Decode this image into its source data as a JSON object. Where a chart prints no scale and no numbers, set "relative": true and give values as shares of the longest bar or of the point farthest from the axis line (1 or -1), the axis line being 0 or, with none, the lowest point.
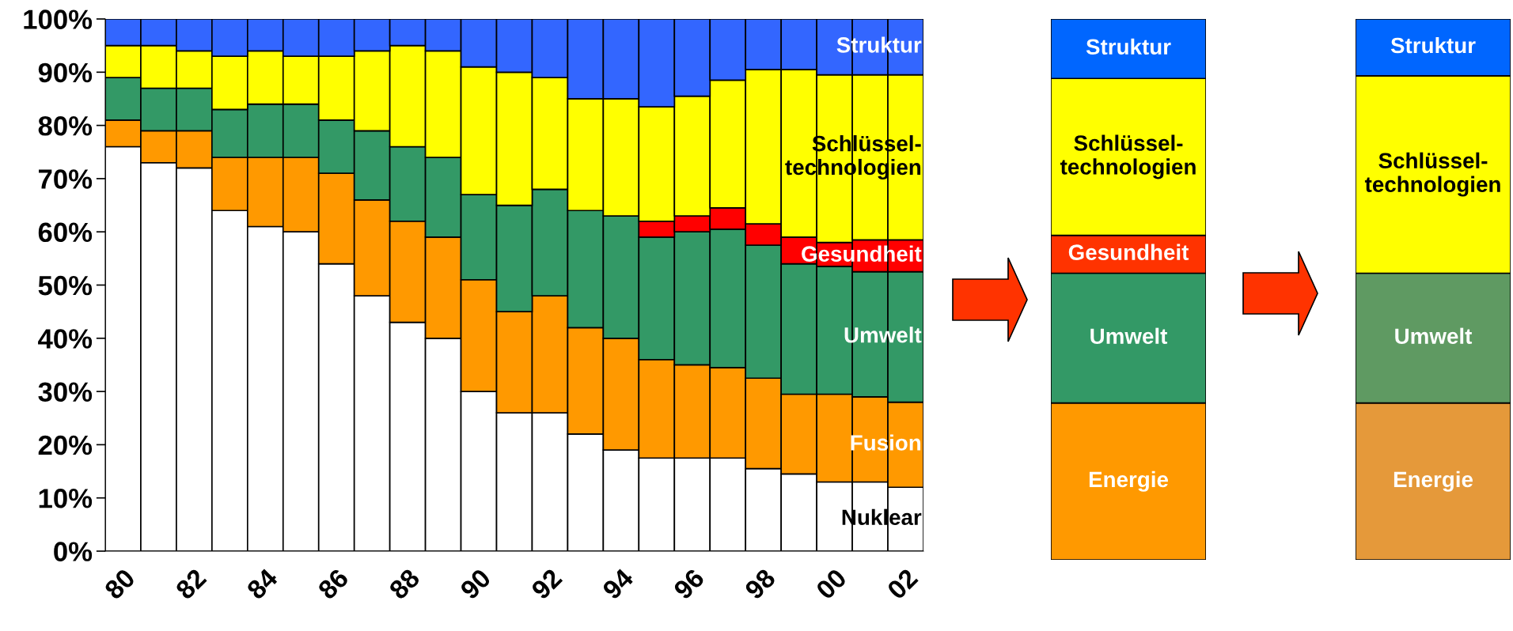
{
  "chart_data": [
    {
      "type": "bar",
      "stacked": true,
      "categories": [
        "80",
        null,
        "82",
        null,
        "84",
        null,
        "86",
        null,
        "88",
        null,
        "90",
        null,
        "92",
        null,
        "94",
        null,
        "96",
        null,
        "98",
        null,
        "00",
        null,
        "02"
      ],
      "ylim": [
        0,
        100
      ],
      "yticks": [
        {
          "value": 0,
          "label": "0%"
        },
        {
          "value": 10,
          "label": "10%"
        },
        {
          "value": 20,
          "label": "20%"
        },
        {
          "value": 30,
          "label": "30%"
        },
        {
          "value": 40,
          "label": "40%"
        },
        {
          "value": 50,
          "label": "50%"
        },
        {
          "value": 60,
          "label": "60%"
        },
        {
          "value": 70,
          "label": "70%"
        },
        {
          "value": 80,
          "label": "80%"
        },
        {
          "value": 90,
          "label": "90%"
        },
        {
          "value": 100,
          "label": "100%"
        }
      ],
      "series": [
        {
          "name": "Nuklear",
          "color": "#ffffff",
          "values": [
            76,
            73,
            72,
            64,
            61,
            60,
            54,
            48,
            43,
            40,
            30,
            26,
            26,
            22,
            19,
            17.5,
            17.5,
            17.5,
            15.5,
            14.5,
            13,
            13,
            12
          ]
        },
        {
          "name": "Fusion",
          "color": "#ff9900",
          "values": [
            5,
            6,
            7,
            10,
            13,
            14,
            17,
            18,
            19,
            19,
            21,
            19,
            22,
            20,
            21,
            18.5,
            17.5,
            17,
            17,
            15,
            16.5,
            16,
            16
          ]
        },
        {
          "name": "Umwelt",
          "color": "#339966",
          "values": [
            8,
            8,
            8,
            9,
            10,
            10,
            10,
            13,
            14,
            15,
            16,
            20,
            20,
            22,
            23,
            23,
            25,
            26,
            25,
            24.5,
            24,
            23.5,
            24.5
          ]
        },
        {
          "name": "Gesundheit",
          "color": "#ff0000",
          "values": [
            0,
            0,
            0,
            0,
            0,
            0,
            0,
            0,
            0,
            0,
            0,
            0,
            0,
            0,
            0,
            3,
            3,
            4,
            4,
            5,
            4.5,
            6,
            6
          ]
        },
        {
          "name": "Schlüssel-\ntechnologien",
          "color": "#ffff00",
          "values": [
            6,
            8,
            7,
            10,
            10,
            9,
            12,
            15,
            19,
            20,
            24,
            25,
            21,
            21,
            22,
            21.5,
            22.5,
            24,
            29,
            31.5,
            31.5,
            31,
            31
          ]
        },
        {
          "name": "Struktur",
          "color": "#3366ff",
          "values": [
            5,
            5,
            6,
            7,
            6,
            7,
            7,
            6,
            5,
            6,
            9,
            10,
            11,
            15,
            15,
            16.5,
            14.5,
            11.5,
            9.5,
            9.5,
            10.5,
            10.5,
            10.5
          ]
        }
      ]
    },
    {
      "type": "bar",
      "stacked": true,
      "relative": true,
      "categories": [
        null
      ],
      "series": [
        {
          "name": "Energie",
          "color": "#ff9900",
          "values": [
            0.29
          ]
        },
        {
          "name": "Umwelt",
          "color": "#339966",
          "values": [
            0.24
          ]
        },
        {
          "name": "Gesundheit",
          "color": "#ff3300",
          "values": [
            0.07
          ]
        },
        {
          "name": "Schlüssel-\ntechnologien",
          "color": "#ffff00",
          "values": [
            0.29
          ]
        },
        {
          "name": "Struktur",
          "color": "#0066ff",
          "values": [
            0.11
          ]
        }
      ]
    },
    {
      "type": "bar",
      "stacked": true,
      "relative": true,
      "categories": [
        null
      ],
      "series": [
        {
          "name": "Energie",
          "color": "#e5993a",
          "values": [
            0.29
          ]
        },
        {
          "name": "Umwelt",
          "color": "#5f9a62",
          "values": [
            0.24
          ]
        },
        {
          "name": "Schlüssel-\ntechnologien",
          "color": "#ffff00",
          "values": [
            0.365
          ]
        },
        {
          "name": "Struktur",
          "color": "#0066ff",
          "values": [
            0.105
          ]
        }
      ]
    }
  ]
}
